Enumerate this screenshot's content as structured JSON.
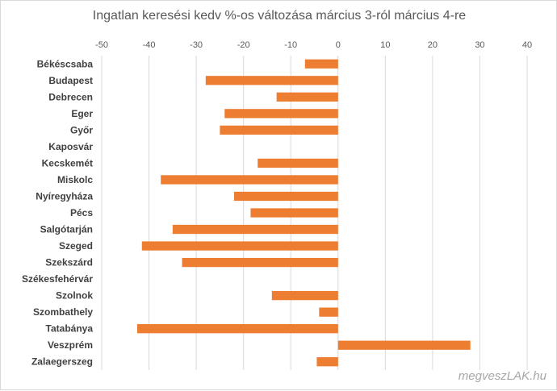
{
  "chart_data": {
    "type": "bar",
    "orientation": "horizontal",
    "title": "Ingatlan keresési kedv %-os változása március 3-ról március 4-re",
    "xlim": [
      -50,
      40
    ],
    "xticks": [
      -50,
      -40,
      -30,
      -20,
      -10,
      0,
      10,
      20,
      30,
      40
    ],
    "grid": true,
    "bar_color": "#ED7D31",
    "categories": [
      "Békéscsaba",
      "Budapest",
      "Debrecen",
      "Eger",
      "Győr",
      "Kaposvár",
      "Kecskemét",
      "Miskolc",
      "Nyíregyháza",
      "Pécs",
      "Salgótarján",
      "Szeged",
      "Szekszárd",
      "Székesfehérvár",
      "Szolnok",
      "Szombathely",
      "Tatabánya",
      "Veszprém",
      "Zalaegerszeg"
    ],
    "values": [
      -7,
      -28,
      -13,
      -24,
      -25,
      0,
      -17,
      -37.5,
      -22,
      -18.5,
      -35,
      -41.5,
      -33,
      0,
      -14,
      -4,
      -42.5,
      28,
      -4.5
    ]
  },
  "watermark": "megveszLAK.hu"
}
